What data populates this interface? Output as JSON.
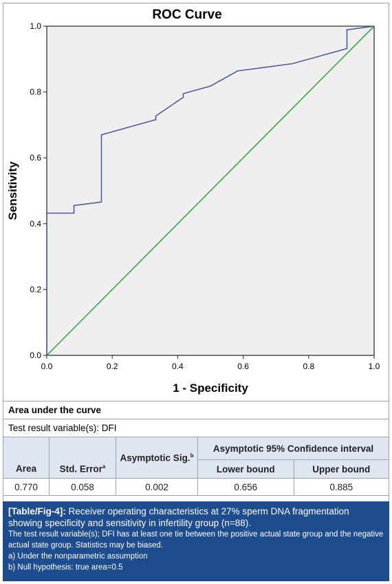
{
  "chart_data": {
    "type": "line",
    "title": "ROC Curve",
    "xlabel": "1 - Specificity",
    "ylabel": "Sensitivity",
    "xlim": [
      0,
      1
    ],
    "ylim": [
      0,
      1
    ],
    "xticks": [
      "0.0",
      "0.2",
      "0.4",
      "0.6",
      "0.8",
      "1.0"
    ],
    "yticks": [
      "0.0",
      "0.2",
      "0.4",
      "0.6",
      "0.8",
      "1.0"
    ],
    "grid": false,
    "background": "#efefef",
    "series": [
      {
        "color": "#4a5e9c",
        "x": [
          0,
          0,
          0.083,
          0.083,
          0.167,
          0.167,
          0.333,
          0.333,
          0.417,
          0.417,
          0.5,
          0.583,
          0.75,
          0.917,
          0.917,
          1.0
        ],
        "y": [
          0,
          0.432,
          0.432,
          0.455,
          0.466,
          0.67,
          0.716,
          0.727,
          0.784,
          0.795,
          0.818,
          0.864,
          0.886,
          0.932,
          0.989,
          1.0
        ]
      },
      {
        "color": "#3aa64a",
        "x": [
          0,
          1
        ],
        "y": [
          0,
          1
        ]
      }
    ]
  },
  "table": {
    "heading": "Area under the curve",
    "test_variable": "Test result variable(s): DFI",
    "col_area": "Area",
    "col_std_error": "Std. Error",
    "col_std_error_sup": "a",
    "col_sig": "Asymptotic Sig.",
    "col_sig_sup": "b",
    "col_ci": "Asymptotic 95% Confidence interval",
    "col_lower": "Lower bound",
    "col_upper": "Upper bound",
    "values": {
      "area": "0.770",
      "std_error": "0.058",
      "sig": "0.002",
      "lower": "0.656",
      "upper": "0.885"
    }
  },
  "caption": {
    "label": "[Table/Fig-4]:",
    "text": " Receiver operating characteristics at 27% sperm DNA fragmentation showing specificity and sensitivity in infertility group (n=88).",
    "note1": "The test result variable(s); DFI has at least one tie between the positive actual state group and the negative actual state group. Statistics may be biased.",
    "note2": "a) Under the nonparametric assumption",
    "note3": "b) Null hypothesis: true area=0.5"
  }
}
